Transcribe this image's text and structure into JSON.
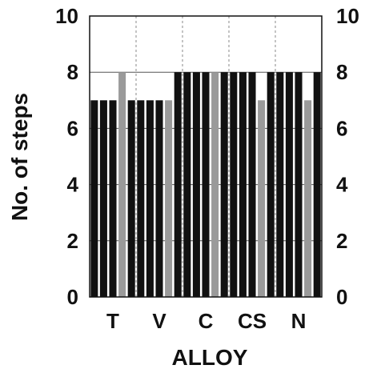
{
  "chart_data": {
    "type": "bar",
    "xlabel": "ALLOY",
    "ylabel": "No. of steps",
    "categories": [
      "T",
      "V",
      "C",
      "CS",
      "N"
    ],
    "ylim": [
      0,
      10
    ],
    "yticks": [
      "0",
      "2",
      "4",
      "6",
      "8",
      "10"
    ],
    "right_axis_ticks": [
      "0",
      "2",
      "4",
      "6",
      "8",
      "10"
    ],
    "grid": true,
    "series": [
      {
        "color": "#111111",
        "values": [
          7,
          7,
          8,
          8,
          8
        ]
      },
      {
        "color": "#111111",
        "values": [
          7,
          7,
          8,
          8,
          8
        ]
      },
      {
        "color": "#111111",
        "values": [
          7,
          7,
          8,
          8,
          8
        ]
      },
      {
        "color": "#9a9a9a",
        "values": [
          8,
          7,
          8,
          7,
          7
        ]
      },
      {
        "color": "#111111",
        "values": [
          7,
          8,
          8,
          8,
          8
        ]
      }
    ]
  }
}
